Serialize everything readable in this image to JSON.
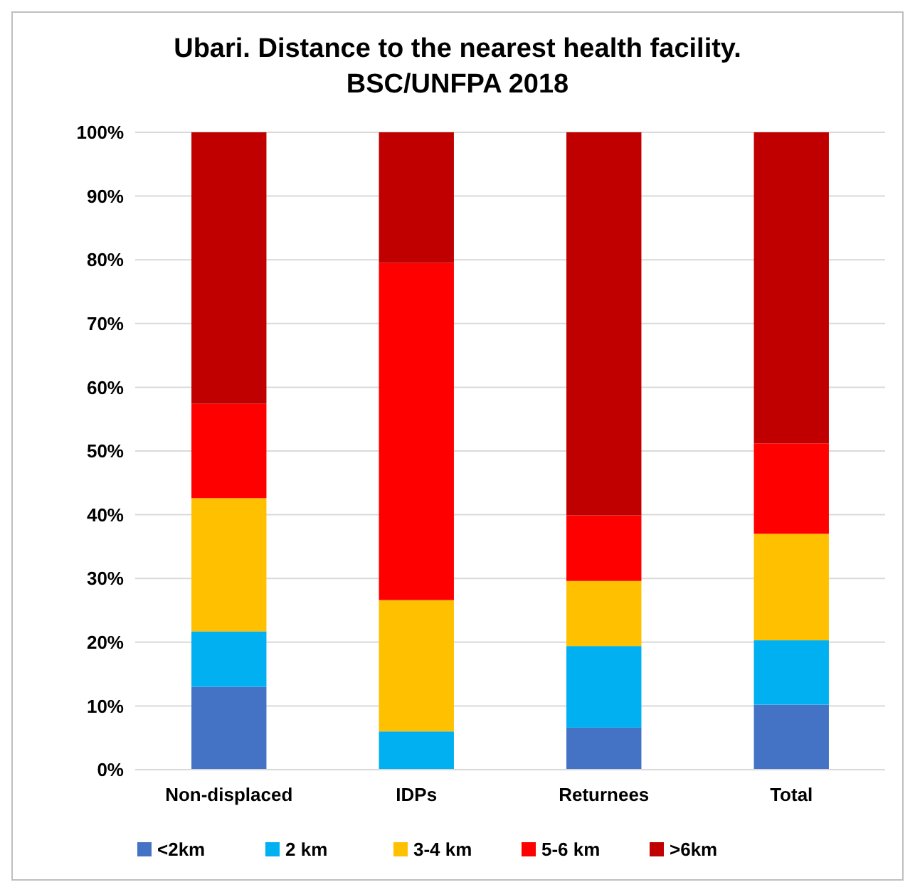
{
  "chart_data": {
    "type": "bar",
    "stacked": true,
    "title": "Ubari. Distance to the nearest health facility.\nBSC/UNFPA 2018",
    "categories": [
      "Non-displaced",
      "IDPs",
      "Returnees",
      "Total"
    ],
    "series": [
      {
        "name": "<2km",
        "color": "#4472c4",
        "values": [
          13,
          0,
          6.6,
          10.2
        ]
      },
      {
        "name": "2 km",
        "color": "#00b0f0",
        "values": [
          8.7,
          6,
          12.8,
          10.1
        ]
      },
      {
        "name": "3-4 km",
        "color": "#ffc000",
        "values": [
          20.9,
          20.6,
          10.2,
          16.7
        ]
      },
      {
        "name": "5-6 km",
        "color": "#ff0000",
        "values": [
          14.8,
          52.9,
          10.3,
          14.2
        ]
      },
      {
        "name": ">6km",
        "color": "#c00000",
        "values": [
          42.6,
          20.5,
          60.1,
          48.8
        ]
      }
    ],
    "ylim": [
      0,
      100
    ],
    "yticks": [
      {
        "value": 0,
        "label": "0%"
      },
      {
        "value": 10,
        "label": "10%"
      },
      {
        "value": 20,
        "label": "20%"
      },
      {
        "value": 30,
        "label": "30%"
      },
      {
        "value": 40,
        "label": "40%"
      },
      {
        "value": 50,
        "label": "50%"
      },
      {
        "value": 60,
        "label": "60%"
      },
      {
        "value": 70,
        "label": "70%"
      },
      {
        "value": 80,
        "label": "80%"
      },
      {
        "value": 90,
        "label": "90%"
      },
      {
        "value": 100,
        "label": "100%"
      }
    ],
    "grid": "y",
    "legend": "bottom"
  }
}
